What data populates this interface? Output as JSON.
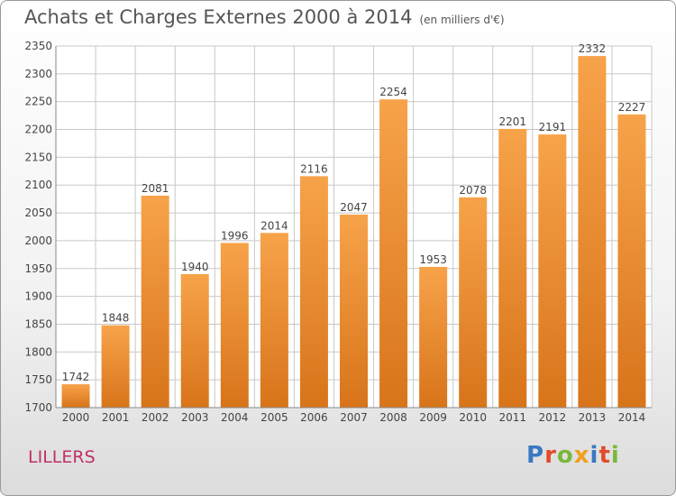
{
  "header": {
    "title": "Achats et Charges Externes 2000 à 2014",
    "unit": "(en milliers d'€)"
  },
  "footer": {
    "town": "LILLERS",
    "logo": "Proxiti"
  },
  "colors": {
    "bar_light": "#f7a34a",
    "bar_dark": "#d8741a",
    "grid": "#c8c8c8",
    "town": "#c0306a"
  },
  "chart_data": {
    "type": "bar",
    "title": "Achats et Charges Externes 2000 à 2014",
    "subtitle": "(en milliers d'€)",
    "xlabel": "",
    "ylabel": "",
    "categories": [
      "2000",
      "2001",
      "2002",
      "2003",
      "2004",
      "2005",
      "2006",
      "2007",
      "2008",
      "2009",
      "2010",
      "2011",
      "2012",
      "2013",
      "2014"
    ],
    "values": [
      1742,
      1848,
      2081,
      1940,
      1996,
      2014,
      2116,
      2047,
      2254,
      1953,
      2078,
      2201,
      2191,
      2332,
      2227
    ],
    "ylim": [
      1700,
      2350
    ],
    "yticks": [
      1700,
      1750,
      1800,
      1850,
      1900,
      1950,
      2000,
      2050,
      2100,
      2150,
      2200,
      2250,
      2300,
      2350
    ],
    "grid": true,
    "data_labels": true
  }
}
